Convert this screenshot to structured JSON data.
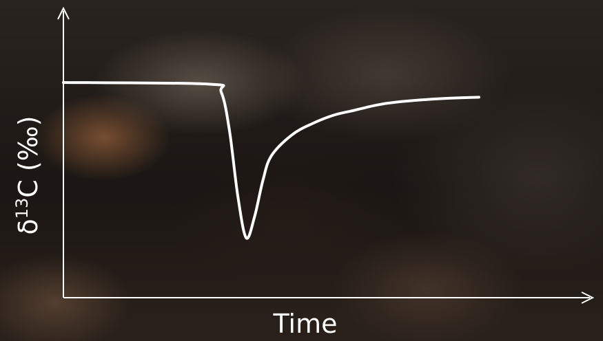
{
  "chart_data": {
    "type": "line",
    "title": "",
    "xlabel": "Time",
    "ylabel": {
      "prefix": "δ",
      "superscript": "13",
      "suffix": "C (‰)"
    },
    "grid": false,
    "legend": "none",
    "axis_ticks": false,
    "x_range": [
      0,
      100
    ],
    "y_range": [
      0,
      100
    ],
    "series": [
      {
        "color": "#ffffff",
        "x": [
          0,
          35,
          38,
          40,
          42,
          44,
          46,
          48,
          50,
          55,
          60,
          65,
          70,
          75,
          80,
          90,
          100
        ],
        "y": [
          100,
          99,
          94,
          70,
          30,
          5,
          18,
          40,
          55,
          68,
          75,
          80,
          83,
          86,
          88,
          90,
          91
        ]
      }
    ]
  }
}
